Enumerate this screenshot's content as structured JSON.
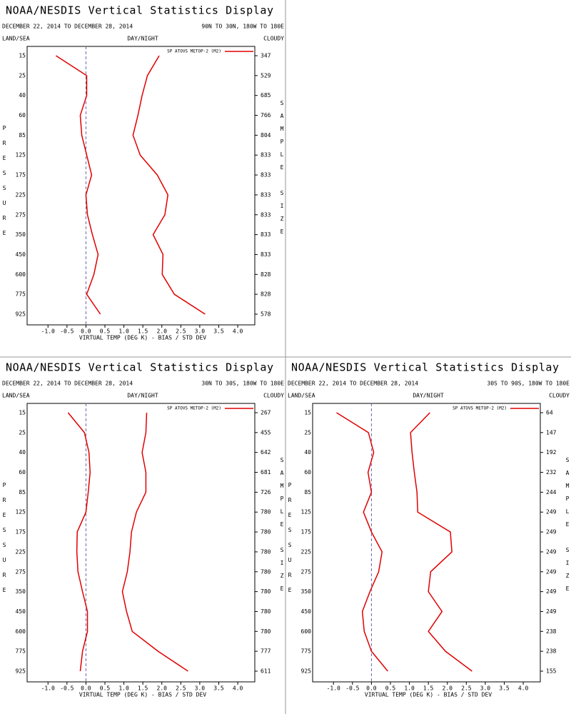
{
  "chart_data": [
    {
      "type": "line",
      "title": "NOAA/NESDIS Vertical Statistics Display",
      "subtitle": "DECEMBER 22, 2014 TO DECEMBER 28, 2014",
      "region": "90N TO 30N, 180W TO 180E",
      "header_left": "LAND/SEA",
      "header_center": "DAY/NIGHT",
      "header_right": "CLOUDY",
      "legend": "SP ATOVS METOP-2 (M2)",
      "y_label": "PRESSURE",
      "y2_label": "SAMPLE SIZE",
      "x_label": "VIRTUAL TEMP (DEG K) - BIAS / STD DEV",
      "categories": [
        15,
        25,
        40,
        60,
        85,
        125,
        175,
        225,
        275,
        350,
        450,
        600,
        775,
        925
      ],
      "sample_size": [
        347,
        529,
        685,
        766,
        804,
        833,
        833,
        833,
        833,
        833,
        833,
        828,
        828,
        578
      ],
      "series": [
        {
          "color": "#e00000",
          "values": [
            -0.79,
            0.02,
            0.02,
            -0.15,
            -0.11,
            0.02,
            0.15,
            0.0,
            0.04,
            0.17,
            0.32,
            0.21,
            0.02,
            0.38
          ]
        },
        {
          "color": "#e00000",
          "values": [
            1.93,
            1.62,
            1.48,
            1.37,
            1.24,
            1.43,
            1.88,
            2.16,
            2.08,
            1.77,
            2.03,
            2.01,
            2.33,
            3.14
          ]
        }
      ],
      "xlim": [
        -1.55,
        4.45
      ],
      "xticks": [
        {
          "value": -1,
          "label": "-1.0"
        },
        {
          "value": -0.5,
          "label": "-0.5"
        },
        {
          "value": 0,
          "label": "0.0"
        },
        {
          "value": 0.5,
          "label": "0.5"
        },
        {
          "value": 1,
          "label": "1.0"
        },
        {
          "value": 1.5,
          "label": "1.5"
        },
        {
          "value": 2,
          "label": "2.0"
        },
        {
          "value": 2.5,
          "label": "2.5"
        },
        {
          "value": 3,
          "label": "3.0"
        },
        {
          "value": 3.5,
          "label": "3.5"
        },
        {
          "value": 4,
          "label": "4.0"
        }
      ]
    },
    {
      "type": "line",
      "title": "NOAA/NESDIS Vertical Statistics Display",
      "subtitle": "DECEMBER 22, 2014 TO DECEMBER 28, 2014",
      "region": "30N TO 30S, 180W TO 180E",
      "header_left": "LAND/SEA",
      "header_center": "DAY/NIGHT",
      "header_right": "CLOUDY",
      "legend": "SP ATOVS METOP-2 (M2)",
      "y_label": "PRESSURE",
      "y2_label": "SAMPLE SIZE",
      "x_label": "VIRTUAL TEMP (DEG K) - BIAS / STD DEV",
      "categories": [
        15,
        25,
        40,
        60,
        85,
        125,
        175,
        225,
        275,
        350,
        450,
        600,
        775,
        925
      ],
      "sample_size": [
        267,
        455,
        642,
        681,
        726,
        780,
        780,
        780,
        780,
        780,
        780,
        780,
        777,
        611
      ],
      "series": [
        {
          "color": "#e00000",
          "values": [
            -0.47,
            -0.04,
            0.08,
            0.11,
            0.06,
            0.0,
            -0.23,
            -0.24,
            -0.21,
            -0.09,
            0.04,
            0.04,
            -0.09,
            -0.15
          ]
        },
        {
          "color": "#e00000",
          "values": [
            1.6,
            1.58,
            1.48,
            1.58,
            1.58,
            1.33,
            1.2,
            1.16,
            1.09,
            0.96,
            1.07,
            1.22,
            1.9,
            2.69
          ]
        }
      ],
      "xlim": [
        -1.55,
        4.45
      ],
      "xticks": [
        {
          "value": -1,
          "label": "-1.0"
        },
        {
          "value": -0.5,
          "label": "-0.5"
        },
        {
          "value": 0,
          "label": "0.0"
        },
        {
          "value": 0.5,
          "label": "0.5"
        },
        {
          "value": 1,
          "label": "1.0"
        },
        {
          "value": 1.5,
          "label": "1.5"
        },
        {
          "value": 2,
          "label": "2.0"
        },
        {
          "value": 2.5,
          "label": "2.5"
        },
        {
          "value": 3,
          "label": "3.0"
        },
        {
          "value": 3.5,
          "label": "3.5"
        },
        {
          "value": 4,
          "label": "4.0"
        }
      ]
    },
    {
      "type": "line",
      "title": "NOAA/NESDIS Vertical Statistics Display",
      "subtitle": "DECEMBER 22, 2014 TO DECEMBER 28, 2014",
      "region": "30S TO 90S, 180W TO 180E",
      "header_left": "LAND/SEA",
      "header_center": "DAY/NIGHT",
      "header_right": "CLOUDY",
      "legend": "SP ATOVS METOP-2 (M2)",
      "y_label": "PRESSURE",
      "y2_label": "SAMPLE SIZE",
      "x_label": "VIRTUAL TEMP (DEG K) - BIAS / STD DEV",
      "categories": [
        15,
        25,
        40,
        60,
        85,
        125,
        175,
        225,
        275,
        350,
        450,
        600,
        775,
        925
      ],
      "sample_size": [
        64,
        147,
        192,
        232,
        244,
        249,
        249,
        249,
        249,
        249,
        249,
        238,
        238,
        155
      ],
      "series": [
        {
          "color": "#e00000",
          "values": [
            -0.92,
            -0.08,
            0.06,
            -0.09,
            0.0,
            -0.21,
            0.0,
            0.28,
            0.19,
            -0.04,
            -0.24,
            -0.19,
            0.0,
            0.43
          ]
        },
        {
          "color": "#e00000",
          "values": [
            1.54,
            1.03,
            1.07,
            1.13,
            1.2,
            1.22,
            2.08,
            2.12,
            1.56,
            1.5,
            1.86,
            1.5,
            1.95,
            2.65
          ]
        }
      ],
      "xlim": [
        -1.55,
        4.45
      ],
      "xticks": [
        {
          "value": -1,
          "label": "-1.0"
        },
        {
          "value": -0.5,
          "label": "-0.5"
        },
        {
          "value": 0,
          "label": "0.0"
        },
        {
          "value": 0.5,
          "label": "0.5"
        },
        {
          "value": 1,
          "label": "1.0"
        },
        {
          "value": 1.5,
          "label": "1.5"
        },
        {
          "value": 2,
          "label": "2.0"
        },
        {
          "value": 2.5,
          "label": "2.5"
        },
        {
          "value": 3,
          "label": "3.0"
        },
        {
          "value": 3.5,
          "label": "3.5"
        },
        {
          "value": 4,
          "label": "4.0"
        }
      ]
    }
  ]
}
